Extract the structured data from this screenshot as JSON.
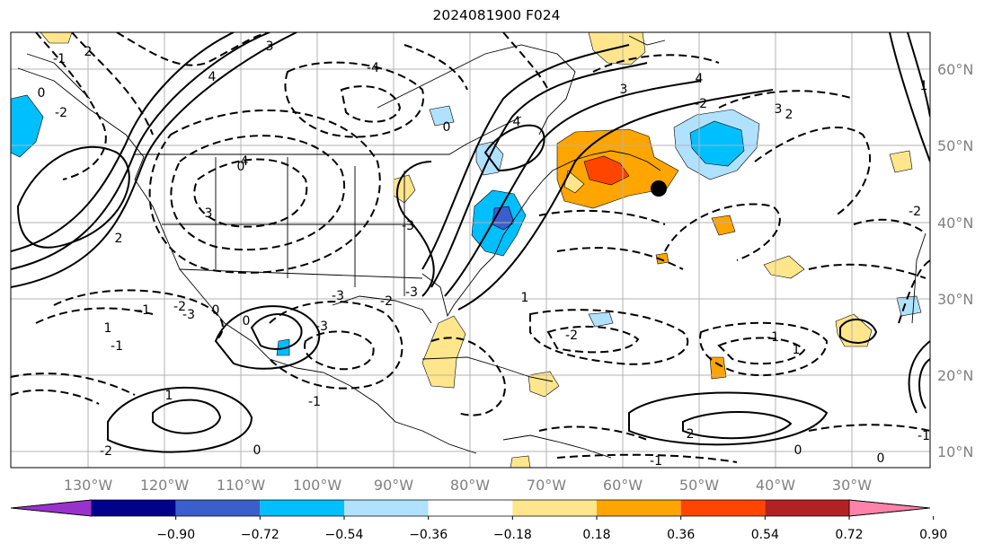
{
  "title": "2024081900 F024",
  "map": {
    "lon_labels": [
      "130°W",
      "120°W",
      "110°W",
      "100°W",
      "90°W",
      "80°W",
      "70°W",
      "60°W",
      "50°W",
      "40°W",
      "30°W"
    ],
    "lat_labels": [
      "60°N",
      "50°N",
      "40°N",
      "30°N",
      "20°N",
      "10°N"
    ],
    "contour_labels": [
      "-2",
      "2",
      "3",
      "4",
      "4",
      "-3",
      "-4",
      "0",
      "-2",
      "2",
      "3",
      "4",
      "3",
      "4",
      "-3",
      "2",
      "3",
      "0",
      "-3",
      "0",
      "1",
      "-1",
      "1",
      "-3",
      "-3",
      "-1",
      "-2",
      "1",
      "-2",
      "1",
      "-1",
      "2",
      "0",
      "-1",
      "-2",
      "-1",
      "0",
      "0",
      "-1",
      "-2",
      "1",
      "-2",
      "0",
      "-1",
      "0"
    ]
  },
  "colorbar": {
    "ticks": [
      "−0.90",
      "−0.72",
      "−0.54",
      "−0.36",
      "−0.18",
      "0.18",
      "0.36",
      "0.54",
      "0.72",
      "0.90"
    ],
    "colors": [
      "#9932cc",
      "#00008b",
      "#3a5fcd",
      "#00bfff",
      "#b0e2ff",
      "#ffffff",
      "#ffe68c",
      "#ffa500",
      "#ff4500",
      "#b22222",
      "#ff82ab"
    ]
  }
}
